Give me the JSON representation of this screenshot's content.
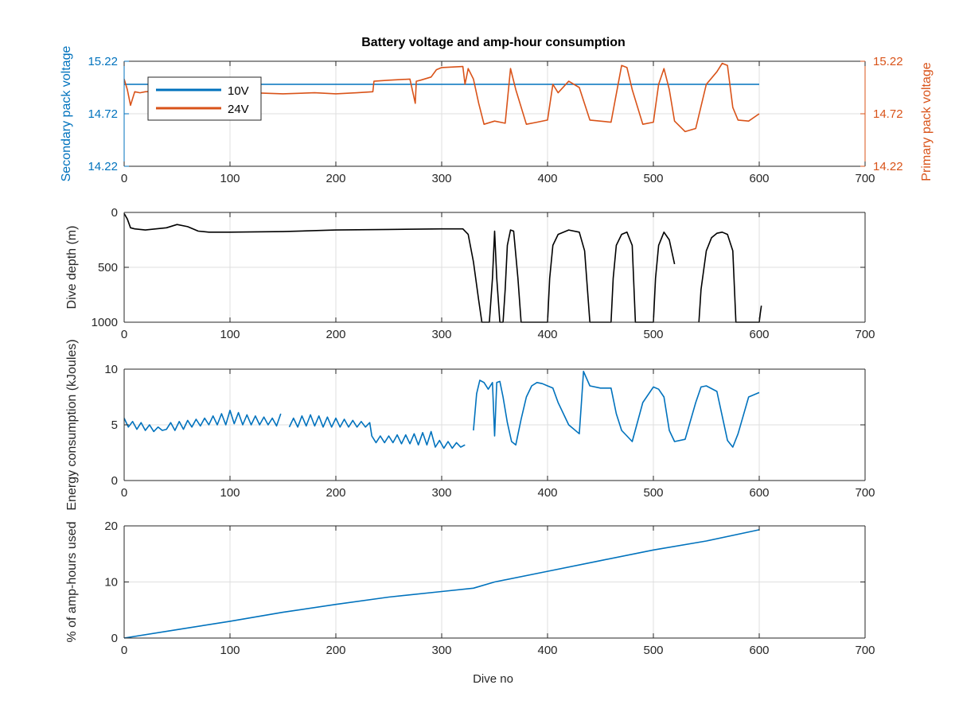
{
  "colors": {
    "blue": "#0072BD",
    "orange": "#D95319",
    "black": "#000000",
    "axis": "#262626",
    "grid": "#DFDFDF"
  },
  "chart_data": [
    {
      "type": "line",
      "title": "Battery voltage and amp-hour consumption",
      "xlabel": "",
      "ylabel_left": "Secondary pack voltage",
      "ylabel_right": "Primary pack voltage",
      "xlim": [
        0,
        700
      ],
      "xticks": [
        "0",
        "100",
        "200",
        "300",
        "400",
        "500",
        "600",
        "700"
      ],
      "ylim": [
        14.22,
        15.22
      ],
      "yticks": [
        "14.22",
        "14.72",
        "15.22"
      ],
      "grid": true,
      "legend": {
        "position": "top-left",
        "entries": [
          "10V",
          "24V"
        ]
      },
      "series": [
        {
          "name": "10V",
          "axis": "left",
          "color": "#0072BD",
          "x": [
            0,
            600
          ],
          "y": [
            15.0,
            15.0
          ]
        },
        {
          "name": "24V",
          "axis": "right",
          "color": "#D95319",
          "x": [
            0,
            3,
            6,
            10,
            15,
            20,
            40,
            60,
            80,
            100,
            120,
            150,
            180,
            200,
            220,
            235,
            236,
            250,
            270,
            275,
            276,
            280,
            290,
            295,
            300,
            320,
            322,
            325,
            330,
            335,
            340,
            350,
            360,
            365,
            370,
            380,
            390,
            400,
            405,
            410,
            420,
            430,
            440,
            460,
            470,
            475,
            480,
            490,
            500,
            505,
            510,
            515,
            520,
            530,
            540,
            550,
            560,
            565,
            570,
            575,
            580,
            590,
            600
          ],
          "y": [
            15.05,
            14.95,
            14.8,
            14.93,
            14.92,
            14.93,
            14.94,
            14.92,
            14.93,
            14.91,
            14.92,
            14.91,
            14.92,
            14.91,
            14.92,
            14.93,
            15.03,
            15.04,
            15.05,
            14.82,
            15.03,
            15.04,
            15.07,
            15.14,
            15.16,
            15.17,
            15.0,
            15.15,
            15.05,
            14.82,
            14.62,
            14.65,
            14.63,
            15.15,
            14.95,
            14.62,
            14.64,
            14.66,
            15.0,
            14.92,
            15.03,
            14.97,
            14.66,
            14.64,
            15.18,
            15.16,
            14.95,
            14.62,
            14.64,
            15.0,
            15.15,
            14.95,
            14.65,
            14.55,
            14.58,
            15.0,
            15.12,
            15.2,
            15.18,
            14.78,
            14.66,
            14.65,
            14.72
          ]
        }
      ]
    },
    {
      "type": "line",
      "xlabel": "",
      "ylabel": "Dive depth (m)",
      "xlim": [
        0,
        700
      ],
      "xticks": [
        "0",
        "100",
        "200",
        "300",
        "400",
        "500",
        "600",
        "700"
      ],
      "ylim": [
        0,
        1000
      ],
      "yreversed": true,
      "yticks": [
        "0",
        "500",
        "1000"
      ],
      "grid": true,
      "series": [
        {
          "color": "#000000",
          "x": [
            0,
            3,
            6,
            10,
            20,
            40,
            50,
            60,
            70,
            80,
            100,
            150,
            200,
            250,
            300,
            320,
            325,
            330,
            335,
            338,
            345,
            348,
            350,
            352,
            355,
            358,
            360,
            362,
            365,
            368,
            372,
            375,
            400,
            402,
            405,
            410,
            420,
            430,
            435,
            440,
            460,
            462,
            465,
            470,
            475,
            480,
            483,
            500,
            502,
            505,
            510,
            515,
            520
          ],
          "y": [
            10,
            60,
            140,
            150,
            160,
            140,
            110,
            130,
            170,
            180,
            180,
            175,
            160,
            155,
            150,
            150,
            200,
            450,
            800,
            1000,
            1000,
            600,
            170,
            600,
            1000,
            1000,
            700,
            300,
            160,
            170,
            600,
            1000,
            1000,
            600,
            300,
            200,
            160,
            180,
            350,
            1000,
            1000,
            600,
            300,
            200,
            180,
            300,
            1000,
            1000,
            600,
            300,
            180,
            250,
            470
          ]
        },
        {
          "color": "#000000",
          "x": [
            543,
            545,
            550,
            555,
            560,
            565,
            570,
            575,
            578,
            600,
            601,
            602
          ],
          "y": [
            1000,
            700,
            350,
            230,
            190,
            180,
            200,
            350,
            1000,
            1000,
            920,
            850
          ]
        }
      ]
    },
    {
      "type": "line",
      "xlabel": "",
      "ylabel": "Energy consumption (kJoules)",
      "xlim": [
        0,
        700
      ],
      "xticks": [
        "0",
        "100",
        "200",
        "300",
        "400",
        "500",
        "600",
        "700"
      ],
      "ylim": [
        0,
        10
      ],
      "yticks": [
        "0",
        "5",
        "10"
      ],
      "grid": true,
      "series": [
        {
          "color": "#0072BD",
          "x": [
            0,
            4,
            8,
            12,
            16,
            20,
            24,
            28,
            32,
            36,
            40,
            44,
            48,
            52,
            56,
            60,
            64,
            68,
            72,
            76,
            80,
            84,
            88,
            92,
            96,
            100,
            104,
            108,
            112,
            116,
            120,
            124,
            128,
            132,
            136,
            140,
            144,
            148
          ],
          "y": [
            5.6,
            4.8,
            5.3,
            4.6,
            5.2,
            4.5,
            5.0,
            4.4,
            4.8,
            4.5,
            4.6,
            5.2,
            4.5,
            5.3,
            4.6,
            5.4,
            4.8,
            5.5,
            4.9,
            5.6,
            5.0,
            5.8,
            5.0,
            6.0,
            5.0,
            6.3,
            5.1,
            6.1,
            5.0,
            5.9,
            5.0,
            5.8,
            5.0,
            5.7,
            5.0,
            5.6,
            4.9,
            6.0
          ]
        },
        {
          "color": "#0072BD",
          "x": [
            156,
            160,
            164,
            168,
            172,
            176,
            180,
            184,
            188,
            192,
            196,
            200,
            204,
            208,
            212,
            216,
            220,
            224,
            228,
            232,
            234,
            238,
            242,
            246,
            250,
            254,
            258,
            262,
            266,
            270,
            274,
            278,
            282,
            286,
            290,
            294,
            298,
            302,
            306,
            310,
            314,
            318,
            322
          ],
          "y": [
            4.8,
            5.6,
            4.8,
            5.8,
            4.9,
            5.9,
            4.9,
            5.8,
            4.8,
            5.7,
            4.8,
            5.6,
            4.8,
            5.5,
            4.8,
            5.4,
            4.8,
            5.3,
            4.8,
            5.2,
            4.0,
            3.4,
            4.0,
            3.4,
            4.0,
            3.4,
            4.1,
            3.3,
            4.1,
            3.3,
            4.2,
            3.2,
            4.3,
            3.2,
            4.4,
            3.0,
            3.6,
            2.9,
            3.5,
            2.9,
            3.4,
            3.0,
            3.2
          ]
        },
        {
          "color": "#0072BD",
          "x": [
            330,
            333,
            336,
            340,
            344,
            348,
            350,
            352,
            355,
            358,
            362,
            366,
            370,
            375,
            380,
            385,
            390,
            395,
            400,
            405,
            410,
            420,
            430,
            432,
            434,
            440,
            450,
            460,
            465,
            470,
            475,
            480,
            490,
            500,
            505,
            510,
            515,
            520,
            530,
            540,
            545,
            550,
            560,
            570,
            575,
            580,
            590,
            600
          ],
          "y": [
            4.5,
            7.8,
            9.0,
            8.8,
            8.2,
            8.8,
            4.0,
            8.8,
            8.9,
            7.5,
            5.2,
            3.5,
            3.2,
            5.5,
            7.5,
            8.5,
            8.8,
            8.7,
            8.5,
            8.3,
            7.0,
            5.0,
            4.2,
            7.0,
            9.8,
            8.5,
            8.3,
            8.3,
            6.0,
            4.5,
            4.0,
            3.5,
            7.0,
            8.4,
            8.2,
            7.5,
            4.5,
            3.5,
            3.7,
            7.0,
            8.4,
            8.5,
            8.0,
            3.6,
            3.0,
            4.2,
            7.5,
            7.9
          ]
        }
      ]
    },
    {
      "type": "line",
      "xlabel": "Dive no",
      "ylabel": "% of amp-hours used",
      "xlim": [
        0,
        700
      ],
      "xticks": [
        "0",
        "100",
        "200",
        "300",
        "400",
        "500",
        "600",
        "700"
      ],
      "ylim": [
        0,
        20
      ],
      "yticks": [
        "0",
        "10",
        "20"
      ],
      "grid": true,
      "series": [
        {
          "color": "#0072BD",
          "x": [
            0,
            50,
            100,
            150,
            200,
            250,
            300,
            330,
            350,
            400,
            450,
            500,
            550,
            600
          ],
          "y": [
            0,
            1.5,
            3.0,
            4.6,
            6.0,
            7.3,
            8.3,
            8.9,
            10.0,
            11.9,
            13.8,
            15.7,
            17.3,
            19.3
          ]
        }
      ]
    }
  ]
}
